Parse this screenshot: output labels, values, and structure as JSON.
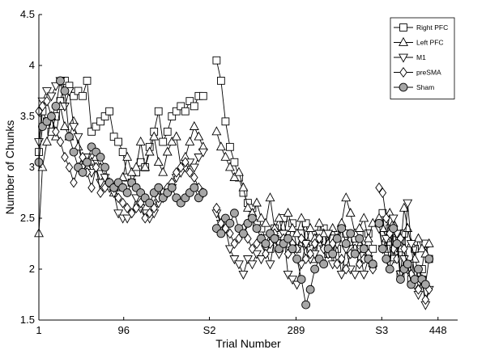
{
  "chart_data": {
    "type": "line",
    "title": "",
    "xlabel": "Trial Number",
    "ylabel": "Number of Chunks",
    "xlim": [
      1,
      470
    ],
    "ylim": [
      1.5,
      4.5
    ],
    "grid": false,
    "legend_position": "top-right",
    "x_tick_positions": [
      1,
      96,
      192,
      289,
      385,
      448
    ],
    "x_tick_labels": [
      "1",
      "96",
      "S2",
      "289",
      "S3",
      "448"
    ],
    "y_ticks": [
      1.5,
      2,
      2.5,
      3,
      3.5,
      4,
      4.5
    ],
    "y_tick_labels": [
      "1.5",
      "2",
      "2.5",
      "3",
      "3.5",
      "4",
      "4.5"
    ],
    "series": [
      {
        "name": "Right PFC",
        "marker": "square",
        "segments": [
          {
            "x": [
              1,
              5,
              10,
              15,
              20,
              25,
              30,
              35,
              40,
              45,
              50,
              55,
              60,
              65,
              70,
              75,
              80,
              85,
              90,
              95,
              100,
              105,
              110,
              115,
              120,
              125,
              130,
              135,
              140,
              145,
              150,
              155,
              160,
              165,
              170,
              175,
              180,
              185
            ],
            "y": [
              3.15,
              3.55,
              3.45,
              3.35,
              3.5,
              3.65,
              3.85,
              3.8,
              3.7,
              3.75,
              3.7,
              3.85,
              3.35,
              3.4,
              3.45,
              3.5,
              3.55,
              3.3,
              3.25,
              3.15,
              2.9,
              2.85,
              2.95,
              3.05,
              3.0,
              3.2,
              3.35,
              3.55,
              3.25,
              3.35,
              3.5,
              3.55,
              3.6,
              3.55,
              3.65,
              3.6,
              3.7,
              3.7
            ]
          },
          {
            "x": [
              200,
              205,
              210,
              215,
              220,
              225,
              230,
              235,
              240,
              245,
              250,
              255,
              260,
              265,
              270,
              275,
              280,
              285,
              290,
              295,
              300,
              305,
              310,
              315,
              320,
              325,
              330,
              335,
              340,
              345,
              350,
              355,
              360,
              365,
              370,
              375
            ],
            "y": [
              4.05,
              3.85,
              3.45,
              3.2,
              3.05,
              2.9,
              2.75,
              2.65,
              2.6,
              2.45,
              2.4,
              2.3,
              2.2,
              2.4,
              2.35,
              2.5,
              2.25,
              2.45,
              2.2,
              2.35,
              2.45,
              2.2,
              2.1,
              2.3,
              2.4,
              2.15,
              2.3,
              2.2,
              2.4,
              2.35,
              2.2,
              2.3,
              2.35,
              2.2,
              2.35,
              2.2
            ]
          },
          {
            "x": [
              382,
              386,
              390,
              394,
              398,
              402,
              406,
              410,
              414,
              418,
              422,
              426,
              430,
              434,
              438
            ],
            "y": [
              2.45,
              2.55,
              2.2,
              2.4,
              2.1,
              2.3,
              1.95,
              2.35,
              2.05,
              1.9,
              2.2,
              1.85,
              2.0,
              2.25,
              2.1
            ]
          }
        ]
      },
      {
        "name": "Left PFC",
        "marker": "triangle-up",
        "segments": [
          {
            "x": [
              1,
              5,
              10,
              15,
              20,
              25,
              30,
              35,
              40,
              45,
              50,
              55,
              60,
              65,
              70,
              75,
              80,
              85,
              90,
              95,
              100,
              105,
              110,
              115,
              120,
              125,
              130,
              135,
              140,
              145,
              150,
              155,
              160,
              165,
              170,
              175,
              180,
              185
            ],
            "y": [
              2.35,
              3.0,
              3.25,
              3.5,
              3.3,
              3.6,
              3.4,
              3.3,
              3.45,
              3.2,
              3.05,
              3.0,
              3.05,
              3.1,
              3.0,
              2.9,
              2.85,
              2.75,
              2.8,
              2.9,
              3.1,
              2.95,
              3.0,
              3.25,
              3.0,
              3.15,
              3.3,
              3.05,
              2.95,
              3.15,
              3.25,
              3.3,
              3.0,
              3.1,
              3.25,
              3.4,
              3.3,
              3.2
            ]
          },
          {
            "x": [
              200,
              205,
              210,
              215,
              220,
              225,
              230,
              235,
              240,
              245,
              250,
              255,
              260,
              265,
              270,
              275,
              280,
              285,
              290,
              295,
              300,
              305,
              310,
              315,
              320,
              325,
              330,
              335,
              340,
              345,
              350,
              355,
              360,
              365,
              370,
              375
            ],
            "y": [
              3.35,
              3.2,
              3.1,
              3.0,
              2.9,
              2.95,
              2.8,
              2.6,
              2.55,
              2.65,
              2.5,
              2.45,
              2.7,
              2.4,
              2.5,
              2.3,
              2.55,
              2.4,
              2.35,
              2.5,
              2.25,
              2.4,
              2.3,
              2.45,
              2.35,
              2.25,
              2.4,
              2.3,
              2.45,
              2.7,
              2.55,
              2.35,
              2.4,
              2.5,
              2.3,
              2.45
            ]
          },
          {
            "x": [
              382,
              386,
              390,
              394,
              398,
              402,
              406,
              410,
              414,
              418,
              422,
              426,
              430,
              434,
              438
            ],
            "y": [
              2.5,
              2.4,
              2.3,
              2.55,
              2.45,
              2.35,
              2.2,
              2.6,
              2.4,
              2.25,
              2.1,
              2.3,
              2.2,
              2.15,
              2.25
            ]
          }
        ]
      },
      {
        "name": "M1",
        "marker": "triangle-down",
        "segments": [
          {
            "x": [
              1,
              5,
              10,
              15,
              20,
              25,
              30,
              35,
              40,
              45,
              50,
              55,
              60,
              65,
              70,
              75,
              80,
              85,
              90,
              95,
              100,
              105,
              110,
              115,
              120,
              125,
              130,
              135,
              140,
              145,
              150,
              155,
              160,
              165,
              170,
              175,
              180,
              185
            ],
            "y": [
              3.25,
              3.65,
              3.75,
              3.7,
              3.8,
              3.85,
              3.6,
              3.75,
              3.4,
              3.3,
              3.0,
              3.1,
              2.95,
              3.0,
              2.85,
              2.9,
              2.8,
              2.75,
              2.55,
              2.5,
              2.5,
              2.55,
              2.7,
              2.6,
              2.55,
              2.5,
              2.55,
              2.65,
              2.7,
              2.75,
              2.8,
              2.9,
              2.95,
              3.0,
              3.05,
              3.0,
              3.1,
              3.15
            ]
          },
          {
            "x": [
              200,
              205,
              210,
              215,
              220,
              225,
              230,
              235,
              240,
              245,
              250,
              255,
              260,
              265,
              270,
              275,
              280,
              285,
              290,
              295,
              300,
              305,
              310,
              315,
              320,
              325,
              330,
              335,
              340,
              345,
              350,
              355,
              360,
              365,
              370,
              375
            ],
            "y": [
              2.55,
              2.45,
              2.4,
              2.2,
              2.1,
              2.05,
              1.95,
              2.1,
              2.05,
              2.15,
              2.1,
              2.2,
              2.05,
              2.3,
              2.15,
              2.35,
              1.95,
              1.9,
              1.85,
              2.05,
              2.25,
              2.1,
              2.15,
              2.35,
              2.2,
              2.35,
              2.05,
              2.25,
              1.95,
              2.2,
              2.0,
              1.95,
              2.2,
              1.95,
              2.1,
              2.0
            ]
          },
          {
            "x": [
              382,
              386,
              390,
              394,
              398,
              402,
              406,
              410,
              414,
              418,
              422,
              426,
              430,
              434,
              438
            ],
            "y": [
              2.4,
              2.2,
              2.3,
              2.05,
              2.5,
              2.35,
              1.95,
              2.1,
              2.65,
              2.25,
              1.9,
              1.75,
              1.9,
              1.65,
              1.8
            ]
          }
        ]
      },
      {
        "name": "preSMA",
        "marker": "diamond",
        "segments": [
          {
            "x": [
              1,
              5,
              10,
              15,
              20,
              25,
              30,
              35,
              40,
              45,
              50,
              55,
              60,
              65,
              70,
              75,
              80,
              85,
              90,
              95,
              100,
              105,
              110,
              115,
              120,
              125,
              130,
              135,
              140,
              145,
              150,
              155,
              160,
              165,
              170,
              175,
              180,
              185
            ],
            "y": [
              3.55,
              3.6,
              3.65,
              3.5,
              3.35,
              3.25,
              3.1,
              3.0,
              2.85,
              3.0,
              3.1,
              2.95,
              2.8,
              3.0,
              2.75,
              2.8,
              2.85,
              2.8,
              2.7,
              2.65,
              2.6,
              2.55,
              2.6,
              2.65,
              2.5,
              2.55,
              2.6,
              2.7,
              2.75,
              2.8,
              2.85,
              2.95,
              3.0,
              3.05,
              2.95,
              2.9,
              2.8,
              2.75
            ]
          },
          {
            "x": [
              200,
              205,
              210,
              215,
              220,
              225,
              230,
              235,
              240,
              245,
              250,
              255,
              260,
              265,
              270,
              275,
              280,
              285,
              290,
              295,
              300,
              305,
              310,
              315,
              320,
              325,
              330,
              335,
              340,
              345,
              350,
              355,
              360,
              365,
              370,
              375
            ],
            "y": [
              2.6,
              2.45,
              2.4,
              2.35,
              2.25,
              2.3,
              2.4,
              2.3,
              2.2,
              2.25,
              2.3,
              2.15,
              2.25,
              2.35,
              2.25,
              2.3,
              2.15,
              2.25,
              2.2,
              2.3,
              2.1,
              2.15,
              2.25,
              2.3,
              2.2,
              2.15,
              2.25,
              2.05,
              2.1,
              2.0,
              2.15,
              2.2,
              2.05,
              2.1,
              2.15,
              2.0
            ]
          },
          {
            "x": [
              382,
              386,
              390,
              394,
              398,
              402,
              406,
              410,
              414,
              418,
              422,
              426,
              430,
              434,
              438
            ],
            "y": [
              2.8,
              2.75,
              2.5,
              2.35,
              2.2,
              2.1,
              2.3,
              2.2,
              2.0,
              1.95,
              1.85,
              1.8,
              1.9,
              1.7,
              1.8
            ]
          }
        ]
      },
      {
        "name": "Sham",
        "marker": "circle-filled",
        "segments": [
          {
            "x": [
              1,
              5,
              10,
              15,
              20,
              25,
              30,
              35,
              40,
              45,
              50,
              55,
              60,
              65,
              70,
              75,
              80,
              85,
              90,
              95,
              100,
              105,
              110,
              115,
              120,
              125,
              130,
              135,
              140,
              145,
              150,
              155,
              160,
              165,
              170,
              175,
              180,
              185
            ],
            "y": [
              3.05,
              3.4,
              3.45,
              3.5,
              3.6,
              3.85,
              3.75,
              3.3,
              3.15,
              3.0,
              2.95,
              3.05,
              3.2,
              3.15,
              3.1,
              3.0,
              2.85,
              2.8,
              2.85,
              2.8,
              2.75,
              2.85,
              2.8,
              2.75,
              2.7,
              2.65,
              2.75,
              2.8,
              2.7,
              2.75,
              2.8,
              2.7,
              2.65,
              2.7,
              2.75,
              2.8,
              2.7,
              2.75
            ]
          },
          {
            "x": [
              200,
              205,
              210,
              215,
              220,
              225,
              230,
              235,
              240,
              245,
              250,
              255,
              260,
              265,
              270,
              275,
              280,
              285,
              290,
              295,
              300,
              305,
              310,
              315,
              320,
              325,
              330,
              335,
              340,
              345,
              350,
              355,
              360,
              365,
              370,
              375
            ],
            "y": [
              2.4,
              2.35,
              2.5,
              2.45,
              2.55,
              2.4,
              2.35,
              2.45,
              2.5,
              2.4,
              2.3,
              2.25,
              2.35,
              2.3,
              2.2,
              2.25,
              2.3,
              2.2,
              2.1,
              1.9,
              1.65,
              1.8,
              2.0,
              2.1,
              2.05,
              2.2,
              2.15,
              2.3,
              2.4,
              2.25,
              2.35,
              2.15,
              2.3,
              2.2,
              2.1,
              2.05
            ]
          },
          {
            "x": [
              382,
              386,
              390,
              394,
              398,
              402,
              406,
              410,
              414,
              418,
              422,
              426,
              430,
              434,
              438
            ],
            "y": [
              2.45,
              2.2,
              2.1,
              2.0,
              2.4,
              2.25,
              1.9,
              2.0,
              2.05,
              1.85,
              1.9,
              2.0,
              1.9,
              1.85,
              2.1
            ]
          }
        ]
      }
    ]
  }
}
